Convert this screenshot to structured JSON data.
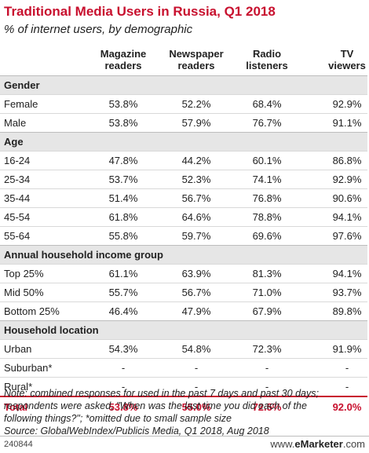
{
  "title": "Traditional Media Users in Russia, Q1 2018",
  "subtitle": "% of internet users, by demographic",
  "columns": [
    {
      "line1": "Magazine",
      "line2": "readers"
    },
    {
      "line1": "Newspaper",
      "line2": "readers"
    },
    {
      "line1": "Radio",
      "line2": "listeners"
    },
    {
      "line1": "TV",
      "line2": "viewers"
    }
  ],
  "rows": [
    {
      "type": "section",
      "label": "Gender"
    },
    {
      "type": "data",
      "label": "Female",
      "values": [
        "53.8%",
        "52.2%",
        "68.4%",
        "92.9%"
      ]
    },
    {
      "type": "data",
      "label": "Male",
      "values": [
        "53.8%",
        "57.9%",
        "76.7%",
        "91.1%"
      ]
    },
    {
      "type": "section",
      "label": "Age"
    },
    {
      "type": "data",
      "label": "16-24",
      "values": [
        "47.8%",
        "44.2%",
        "60.1%",
        "86.8%"
      ]
    },
    {
      "type": "data",
      "label": "25-34",
      "values": [
        "53.7%",
        "52.3%",
        "74.1%",
        "92.9%"
      ]
    },
    {
      "type": "data",
      "label": "35-44",
      "values": [
        "51.4%",
        "56.7%",
        "76.8%",
        "90.6%"
      ]
    },
    {
      "type": "data",
      "label": "45-54",
      "values": [
        "61.8%",
        "64.6%",
        "78.8%",
        "94.1%"
      ]
    },
    {
      "type": "data",
      "label": "55-64",
      "values": [
        "55.8%",
        "59.7%",
        "69.6%",
        "97.6%"
      ]
    },
    {
      "type": "section",
      "label": "Annual household income group"
    },
    {
      "type": "data",
      "label": "Top 25%",
      "values": [
        "61.1%",
        "63.9%",
        "81.3%",
        "94.1%"
      ]
    },
    {
      "type": "data",
      "label": "Mid 50%",
      "values": [
        "55.7%",
        "56.7%",
        "71.0%",
        "93.7%"
      ]
    },
    {
      "type": "data",
      "label": "Bottom 25%",
      "values": [
        "46.4%",
        "47.9%",
        "67.9%",
        "89.8%"
      ]
    },
    {
      "type": "section",
      "label": "Household location"
    },
    {
      "type": "data",
      "label": "Urban",
      "values": [
        "54.3%",
        "54.8%",
        "72.3%",
        "91.9%"
      ]
    },
    {
      "type": "data",
      "label": "Suburban*",
      "values": [
        "-",
        "-",
        "-",
        "-"
      ]
    },
    {
      "type": "data",
      "label": "Rural*",
      "values": [
        "-",
        "-",
        "-",
        "-"
      ]
    },
    {
      "type": "total",
      "label": "Total",
      "values": [
        "53.8%",
        "55.0%",
        "72.5%",
        "92.0%"
      ]
    }
  ],
  "note_lines": [
    "Note: combined responses for used in the past 7 days and past 30 days;",
    "respondents were asked, \"When was the last time you did each of the",
    "following things?\"; *omitted due to small sample size",
    "Source: GlobalWebIndex/Publicis Media, Q1 2018, Aug 2018"
  ],
  "footer": {
    "code": "240844",
    "brand_prefix": "www.",
    "brand_name": "eMarketer",
    "brand_suffix": ".com"
  },
  "colors": {
    "accent": "#c8102e",
    "section_bg": "#e6e6e6",
    "grid": "#d9d9d9"
  },
  "chart_data": {
    "type": "table",
    "title": "Traditional Media Users in Russia, Q1 2018",
    "subtitle": "% of internet users, by demographic",
    "columns": [
      "Magazine readers",
      "Newspaper readers",
      "Radio listeners",
      "TV viewers"
    ],
    "groups": [
      {
        "name": "Gender",
        "rows": [
          {
            "label": "Female",
            "values": [
              53.8,
              52.2,
              68.4,
              92.9
            ]
          },
          {
            "label": "Male",
            "values": [
              53.8,
              57.9,
              76.7,
              91.1
            ]
          }
        ]
      },
      {
        "name": "Age",
        "rows": [
          {
            "label": "16-24",
            "values": [
              47.8,
              44.2,
              60.1,
              86.8
            ]
          },
          {
            "label": "25-34",
            "values": [
              53.7,
              52.3,
              74.1,
              92.9
            ]
          },
          {
            "label": "35-44",
            "values": [
              51.4,
              56.7,
              76.8,
              90.6
            ]
          },
          {
            "label": "45-54",
            "values": [
              61.8,
              64.6,
              78.8,
              94.1
            ]
          },
          {
            "label": "55-64",
            "values": [
              55.8,
              59.7,
              69.6,
              97.6
            ]
          }
        ]
      },
      {
        "name": "Annual household income group",
        "rows": [
          {
            "label": "Top 25%",
            "values": [
              61.1,
              63.9,
              81.3,
              94.1
            ]
          },
          {
            "label": "Mid 50%",
            "values": [
              55.7,
              56.7,
              71.0,
              93.7
            ]
          },
          {
            "label": "Bottom 25%",
            "values": [
              46.4,
              47.9,
              67.9,
              89.8
            ]
          }
        ]
      },
      {
        "name": "Household location",
        "rows": [
          {
            "label": "Urban",
            "values": [
              54.3,
              54.8,
              72.3,
              91.9
            ]
          },
          {
            "label": "Suburban*",
            "values": [
              null,
              null,
              null,
              null
            ]
          },
          {
            "label": "Rural*",
            "values": [
              null,
              null,
              null,
              null
            ]
          }
        ]
      }
    ],
    "total": {
      "label": "Total",
      "values": [
        53.8,
        55.0,
        72.5,
        92.0
      ]
    }
  }
}
